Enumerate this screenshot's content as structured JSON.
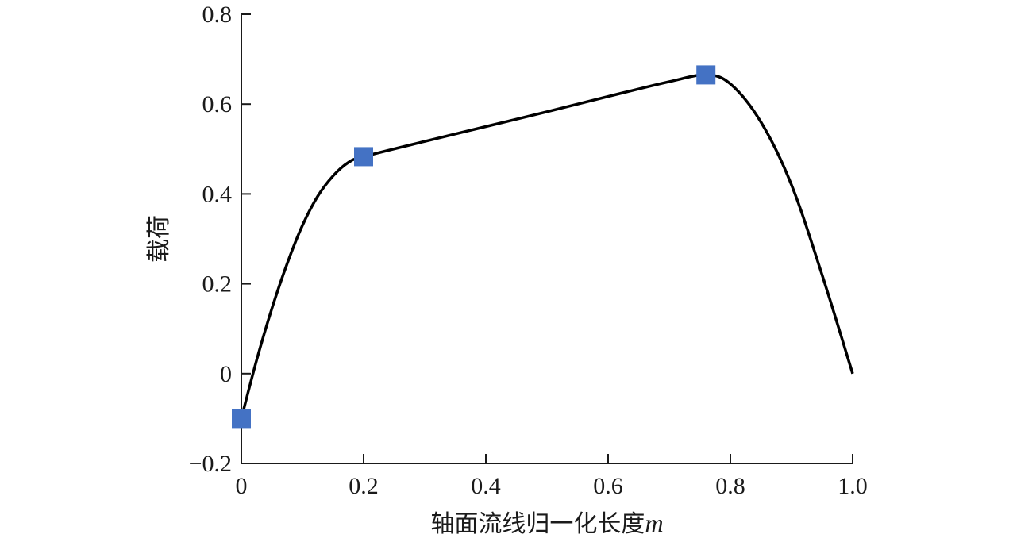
{
  "chart_data": {
    "type": "line",
    "title": "",
    "xlabel": "轴面流线归一化长度",
    "xlabel_var": "m",
    "ylabel": "载荷",
    "xlim": [
      0,
      1.0
    ],
    "ylim": [
      -0.2,
      0.8
    ],
    "x_ticks": [
      0,
      0.2,
      0.4,
      0.6,
      0.8,
      1.0
    ],
    "x_tick_labels": [
      "0",
      "0.2",
      "0.4",
      "0.6",
      "0.8",
      "1.0"
    ],
    "y_ticks": [
      -0.2,
      0,
      0.2,
      0.4,
      0.6,
      0.8
    ],
    "y_tick_labels": [
      "−0.2",
      "0",
      "0.2",
      "0.4",
      "0.6",
      "0.8"
    ],
    "grid": false,
    "line_color": "#000000",
    "marker_color": "#4472c4",
    "series": [
      {
        "x": [
          0,
          0.025,
          0.05,
          0.075,
          0.1,
          0.125,
          0.15,
          0.175,
          0.2,
          0.3,
          0.4,
          0.5,
          0.6,
          0.7,
          0.76,
          0.8,
          0.85,
          0.9,
          0.95,
          1.0
        ],
        "y": [
          -0.1,
          0.03,
          0.145,
          0.245,
          0.33,
          0.395,
          0.44,
          0.47,
          0.483,
          0.517,
          0.55,
          0.583,
          0.617,
          0.65,
          0.665,
          0.645,
          0.56,
          0.42,
          0.22,
          0.0
        ]
      }
    ],
    "markers": {
      "x": [
        0,
        0.2,
        0.76
      ],
      "y": [
        -0.1,
        0.483,
        0.665
      ]
    }
  }
}
